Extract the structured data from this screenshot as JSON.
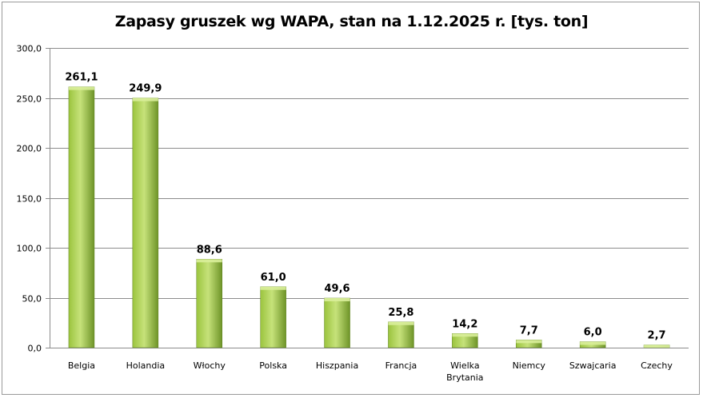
{
  "chart_data": {
    "type": "bar",
    "title": "Zapasy gruszek wg WAPA, stan na 1.12.2025  r. [tys. ton]",
    "categories": [
      "Belgia",
      "Holandia",
      "Włochy",
      "Polska",
      "Hiszpania",
      "Francja",
      "Wielka Brytania",
      "Niemcy",
      "Szwajcaria",
      "Czechy"
    ],
    "category_lines": [
      [
        "Belgia"
      ],
      [
        "Holandia"
      ],
      [
        "Włochy"
      ],
      [
        "Polska"
      ],
      [
        "Hiszpania"
      ],
      [
        "Francja"
      ],
      [
        "Wielka",
        "Brytania"
      ],
      [
        "Niemcy"
      ],
      [
        "Szwajcaria"
      ],
      [
        "Czechy"
      ]
    ],
    "values": [
      261.1,
      249.9,
      88.6,
      61.0,
      49.6,
      25.8,
      14.2,
      7.7,
      6.0,
      2.7
    ],
    "value_labels": [
      "261,1",
      "249,9",
      "88,6",
      "61,0",
      "49,6",
      "25,8",
      "14,2",
      "7,7",
      "6,0",
      "2,7"
    ],
    "y_ticks": [
      0,
      50,
      100,
      150,
      200,
      250,
      300
    ],
    "y_tick_labels": [
      "0,0",
      "50,0",
      "100,0",
      "150,0",
      "200,0",
      "250,0",
      "300,0"
    ],
    "ylim": [
      0,
      300
    ],
    "xlabel": "",
    "ylabel": "",
    "grid": true,
    "legend": "none",
    "colors": {
      "bar_light": "#c6e27a",
      "bar_mid": "#9bc43e",
      "bar_dark": "#6e9428",
      "grid": "#8c8c8c",
      "axis": "#8c8c8c"
    }
  }
}
